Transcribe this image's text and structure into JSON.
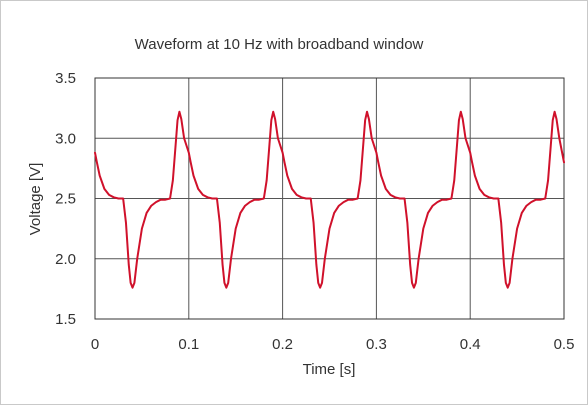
{
  "chart_data": {
    "type": "line",
    "title": "Waveform at 10 Hz with broadband window",
    "xlabel": "Time [s]",
    "ylabel": "Voltage [V]",
    "xlim": [
      0,
      0.5
    ],
    "ylim": [
      1.5,
      3.5
    ],
    "grid": true,
    "x_ticks": [
      "0",
      "0.1",
      "0.2",
      "0.3",
      "0.4",
      "0.5"
    ],
    "y_ticks": [
      "1.5",
      "2.0",
      "2.5",
      "3.0",
      "3.5"
    ],
    "series": [
      {
        "color": "#d0112b",
        "x": [
          0.0,
          0.002,
          0.005,
          0.01,
          0.015,
          0.02,
          0.025,
          0.03,
          0.033,
          0.036,
          0.038,
          0.04,
          0.042,
          0.045,
          0.05,
          0.055,
          0.06,
          0.065,
          0.07,
          0.075,
          0.08,
          0.083,
          0.086,
          0.088,
          0.09,
          0.092,
          0.095,
          0.1,
          0.102,
          0.105,
          0.11,
          0.115,
          0.12,
          0.125,
          0.13,
          0.133,
          0.136,
          0.138,
          0.14,
          0.142,
          0.145,
          0.15,
          0.155,
          0.16,
          0.165,
          0.17,
          0.175,
          0.18,
          0.183,
          0.186,
          0.188,
          0.19,
          0.192,
          0.195,
          0.2,
          0.202,
          0.205,
          0.21,
          0.215,
          0.22,
          0.225,
          0.23,
          0.233,
          0.236,
          0.238,
          0.24,
          0.242,
          0.245,
          0.25,
          0.255,
          0.26,
          0.265,
          0.27,
          0.275,
          0.28,
          0.283,
          0.286,
          0.288,
          0.29,
          0.292,
          0.295,
          0.3,
          0.302,
          0.305,
          0.31,
          0.315,
          0.32,
          0.325,
          0.33,
          0.333,
          0.336,
          0.338,
          0.34,
          0.342,
          0.345,
          0.35,
          0.355,
          0.36,
          0.365,
          0.37,
          0.375,
          0.38,
          0.383,
          0.386,
          0.388,
          0.39,
          0.392,
          0.395,
          0.4,
          0.402,
          0.405,
          0.41,
          0.415,
          0.42,
          0.425,
          0.43,
          0.433,
          0.436,
          0.438,
          0.44,
          0.442,
          0.445,
          0.45,
          0.455,
          0.46,
          0.465,
          0.47,
          0.475,
          0.48,
          0.483,
          0.486,
          0.488,
          0.49,
          0.492,
          0.495,
          0.5
        ],
        "y": [
          2.88,
          2.8,
          2.69,
          2.58,
          2.53,
          2.51,
          2.5,
          2.5,
          2.3,
          1.95,
          1.8,
          1.76,
          1.8,
          2.0,
          2.25,
          2.38,
          2.44,
          2.47,
          2.49,
          2.49,
          2.5,
          2.65,
          2.95,
          3.15,
          3.22,
          3.16,
          3.0,
          2.88,
          2.8,
          2.69,
          2.58,
          2.53,
          2.51,
          2.5,
          2.5,
          2.3,
          1.95,
          1.8,
          1.76,
          1.8,
          2.0,
          2.25,
          2.38,
          2.44,
          2.47,
          2.49,
          2.49,
          2.5,
          2.65,
          2.95,
          3.15,
          3.22,
          3.16,
          3.0,
          2.88,
          2.8,
          2.69,
          2.58,
          2.53,
          2.51,
          2.5,
          2.5,
          2.3,
          1.95,
          1.8,
          1.76,
          1.8,
          2.0,
          2.25,
          2.38,
          2.44,
          2.47,
          2.49,
          2.49,
          2.5,
          2.65,
          2.95,
          3.15,
          3.22,
          3.16,
          3.0,
          2.88,
          2.8,
          2.69,
          2.58,
          2.53,
          2.51,
          2.5,
          2.5,
          2.3,
          1.95,
          1.8,
          1.76,
          1.8,
          2.0,
          2.25,
          2.38,
          2.44,
          2.47,
          2.49,
          2.49,
          2.5,
          2.65,
          2.95,
          3.15,
          3.22,
          3.16,
          3.0,
          2.88,
          2.8,
          2.69,
          2.58,
          2.53,
          2.51,
          2.5,
          2.5,
          2.3,
          1.95,
          1.8,
          1.76,
          1.8,
          2.0,
          2.25,
          2.38,
          2.44,
          2.47,
          2.49,
          2.49,
          2.5,
          2.65,
          2.95,
          3.15,
          3.22,
          3.16,
          3.0,
          2.8
        ]
      }
    ]
  }
}
